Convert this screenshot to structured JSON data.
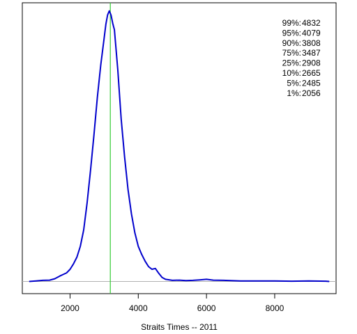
{
  "chart_data": {
    "type": "line",
    "title": "",
    "xlabel": "Straits Times -- 2011",
    "ylabel": "",
    "xlim": [
      600,
      9800
    ],
    "ylim": [
      -0.045,
      1.03
    ],
    "x_ticks": [
      2000,
      4000,
      6000,
      8000
    ],
    "x_tick_labels": [
      "2000",
      "4000",
      "6000",
      "8000"
    ],
    "y_axis_shown": false,
    "grid": false,
    "baseline": 0,
    "vline": {
      "x": 3180,
      "color": "#33cc33"
    },
    "series": [
      {
        "color": "#0000cc",
        "x": [
          800,
          1000,
          1200,
          1400,
          1550,
          1700,
          1800,
          1900,
          2000,
          2100,
          2200,
          2300,
          2400,
          2500,
          2600,
          2700,
          2800,
          2900,
          3000,
          3050,
          3100,
          3150,
          3200,
          3250,
          3300,
          3400,
          3500,
          3600,
          3700,
          3800,
          3900,
          4000,
          4100,
          4200,
          4300,
          4400,
          4500,
          4600,
          4700,
          4800,
          5000,
          5200,
          5400,
          5600,
          5800,
          6000,
          6200,
          6500,
          7000,
          7500,
          8000,
          8500,
          9000,
          9500,
          9600
        ],
        "y": [
          0.0,
          0.002,
          0.004,
          0.005,
          0.01,
          0.02,
          0.026,
          0.032,
          0.045,
          0.065,
          0.09,
          0.13,
          0.19,
          0.29,
          0.41,
          0.54,
          0.68,
          0.8,
          0.9,
          0.95,
          0.985,
          1.0,
          0.985,
          0.955,
          0.93,
          0.78,
          0.6,
          0.46,
          0.34,
          0.25,
          0.18,
          0.13,
          0.1,
          0.075,
          0.055,
          0.045,
          0.048,
          0.03,
          0.015,
          0.008,
          0.004,
          0.005,
          0.003,
          0.004,
          0.006,
          0.008,
          0.005,
          0.004,
          0.002,
          0.002,
          0.002,
          0.001,
          0.002,
          0.001,
          0.0
        ]
      }
    ],
    "annotations": [
      {
        "label": "99%:",
        "value": "4832"
      },
      {
        "label": "95%:",
        "value": "4079"
      },
      {
        "label": "90%:",
        "value": "3808"
      },
      {
        "label": "75%:",
        "value": "3487"
      },
      {
        "label": "25%:",
        "value": "2908"
      },
      {
        "label": "10%:",
        "value": "2665"
      },
      {
        "label": "5%:",
        "value": "2485"
      },
      {
        "label": "1%:",
        "value": "2056"
      }
    ]
  }
}
